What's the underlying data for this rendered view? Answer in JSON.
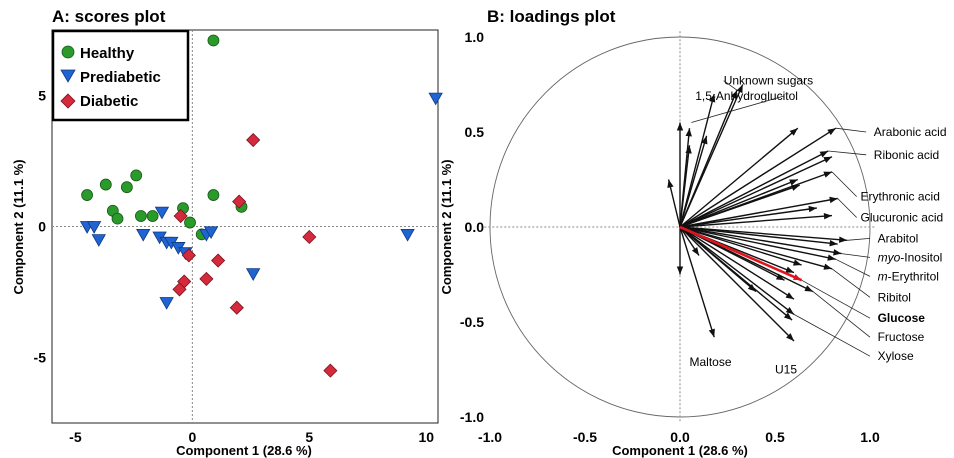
{
  "chart_data": [
    {
      "type": "scatter",
      "title": "A: scores plot",
      "xlabel": "Component 1  (28.6 %)",
      "ylabel": "Component 2  (11.1 %)",
      "xlim": [
        -6,
        10.5
      ],
      "ylim": [
        -7.5,
        7.5
      ],
      "xticks": [
        -5,
        0,
        5,
        10
      ],
      "yticks": [
        -5,
        0,
        5
      ],
      "reference_lines": "dotted lines at x=0 and y=0",
      "legend_position": "top-left",
      "series": [
        {
          "name": "Healthy",
          "color": "#2a9a2a",
          "marker": "circle",
          "points": [
            [
              -4.5,
              1.2
            ],
            [
              -3.7,
              1.6
            ],
            [
              -2.8,
              1.5
            ],
            [
              -2.4,
              1.95
            ],
            [
              -3.4,
              0.6
            ],
            [
              -3.2,
              0.3
            ],
            [
              -2.2,
              0.4
            ],
            [
              -1.7,
              0.4
            ],
            [
              -0.4,
              0.7
            ],
            [
              -0.1,
              0.15
            ],
            [
              0.4,
              -0.3
            ],
            [
              0.9,
              1.2
            ],
            [
              2.1,
              0.75
            ],
            [
              0.9,
              7.1
            ]
          ]
        },
        {
          "name": "Prediabetic",
          "color": "#1f64d2",
          "marker": "triangle-down",
          "points": [
            [
              -4.5,
              0
            ],
            [
              -4.2,
              0
            ],
            [
              -4,
              -0.5
            ],
            [
              -2.1,
              -0.3
            ],
            [
              -1.4,
              -0.4
            ],
            [
              -1.3,
              0.55
            ],
            [
              -1.1,
              -0.6
            ],
            [
              -0.9,
              -0.6
            ],
            [
              -0.6,
              -0.8
            ],
            [
              -0.3,
              -1
            ],
            [
              -1.1,
              -2.9
            ],
            [
              0.6,
              -0.3
            ],
            [
              0.8,
              -0.2
            ],
            [
              2.6,
              -1.8
            ],
            [
              9.2,
              -0.3
            ],
            [
              10.4,
              4.9
            ]
          ]
        },
        {
          "name": "Diabetic",
          "color": "#d42a3c",
          "marker": "diamond",
          "points": [
            [
              -0.5,
              0.4
            ],
            [
              -0.15,
              -1.1
            ],
            [
              -0.35,
              -2.1
            ],
            [
              -0.55,
              -2.4
            ],
            [
              0.6,
              -2
            ],
            [
              1.1,
              -1.3
            ],
            [
              2.0,
              0.95
            ],
            [
              2.6,
              3.3
            ],
            [
              1.9,
              -3.1
            ],
            [
              5.0,
              -0.4
            ],
            [
              5.9,
              -5.5
            ]
          ]
        }
      ]
    },
    {
      "type": "scatter",
      "title": "B: loadings plot",
      "xlabel": "Component 1  (28.6 %)",
      "ylabel": "Component 2  (11.1 %)",
      "xlim": [
        -1.0,
        1.0
      ],
      "ylim": [
        -1.0,
        1.0
      ],
      "xticks": [
        -1.0,
        -0.5,
        0.0,
        0.5,
        1.0
      ],
      "yticks": [
        -1.0,
        -0.5,
        0.0,
        0.5,
        1.0
      ],
      "xtick_labels": [
        "-1.0",
        "-0.5",
        "0.0",
        "0.5",
        "1.0"
      ],
      "ytick_labels": [
        "-1.0",
        "-0.5",
        "0.0",
        "0.5",
        "1.0"
      ],
      "unit_circle": true,
      "loading_vectors": [
        [
          0.0,
          0.55
        ],
        [
          0.05,
          0.52
        ],
        [
          -0.06,
          0.25
        ],
        [
          0.05,
          0.43
        ],
        [
          0.14,
          0.48
        ],
        [
          0.3,
          0.72
        ],
        [
          0.33,
          0.75
        ],
        [
          0.18,
          0.7
        ],
        [
          0.62,
          0.52
        ],
        [
          0.82,
          0.52
        ],
        [
          0.78,
          0.4
        ],
        [
          0.8,
          0.37
        ],
        [
          0.62,
          0.25
        ],
        [
          0.63,
          0.22
        ],
        [
          0.8,
          0.29
        ],
        [
          0.83,
          0.15
        ],
        [
          0.72,
          0.1
        ],
        [
          0.8,
          0.06
        ],
        [
          0.88,
          -0.07
        ],
        [
          0.83,
          -0.09
        ],
        [
          0.85,
          -0.14
        ],
        [
          0.82,
          -0.17
        ],
        [
          0.8,
          -0.22
        ],
        [
          0.64,
          -0.2
        ],
        [
          0.6,
          -0.24
        ],
        [
          0.55,
          -0.28
        ],
        [
          0.7,
          -0.34
        ],
        [
          0.6,
          -0.38
        ],
        [
          0.4,
          -0.34
        ],
        [
          0.6,
          -0.46
        ],
        [
          0.59,
          -0.49
        ],
        [
          0.18,
          -0.58
        ],
        [
          0.6,
          -0.6
        ],
        [
          0.0,
          -0.25
        ],
        [
          0.1,
          -0.15
        ]
      ],
      "highlighted_vector": {
        "name": "Glucose",
        "color": "#e0141e",
        "value": [
          0.64,
          -0.28
        ]
      },
      "variable_labels": [
        {
          "text": "1,5-Anhydroglucitol",
          "italic_part": "",
          "x": 0.08,
          "y": 0.69
        },
        {
          "text": "Unknown sugars",
          "italic_part": "",
          "x": 0.23,
          "y": 0.77
        },
        {
          "text": "Arabonic acid",
          "italic_part": "",
          "x": 1.02,
          "y": 0.5
        },
        {
          "text": "Ribonic acid",
          "italic_part": "",
          "x": 1.02,
          "y": 0.38
        },
        {
          "text": "Erythronic acid",
          "italic_part": "",
          "x": 0.95,
          "y": 0.16
        },
        {
          "text": "Glucuronic acid",
          "italic_part": "",
          "x": 0.95,
          "y": 0.05
        },
        {
          "text": "Arabitol",
          "italic_part": "",
          "x": 1.04,
          "y": -0.06
        },
        {
          "text": "-Inositol",
          "italic_part": "myo",
          "x": 1.04,
          "y": -0.16
        },
        {
          "text": "-Erythritol",
          "italic_part": "m",
          "x": 1.04,
          "y": -0.26
        },
        {
          "text": "Ribitol",
          "italic_part": "",
          "x": 1.04,
          "y": -0.37
        },
        {
          "text": "Glucose",
          "italic_part": "",
          "x": 1.04,
          "y": -0.48,
          "color": "#e0141e"
        },
        {
          "text": "Fructose",
          "italic_part": "",
          "x": 1.04,
          "y": -0.58
        },
        {
          "text": "Xylose",
          "italic_part": "",
          "x": 1.04,
          "y": -0.68
        },
        {
          "text": "Maltose",
          "italic_part": "",
          "x": 0.05,
          "y": -0.71
        },
        {
          "text": "U15",
          "italic_part": "",
          "x": 0.5,
          "y": -0.75
        }
      ]
    }
  ]
}
